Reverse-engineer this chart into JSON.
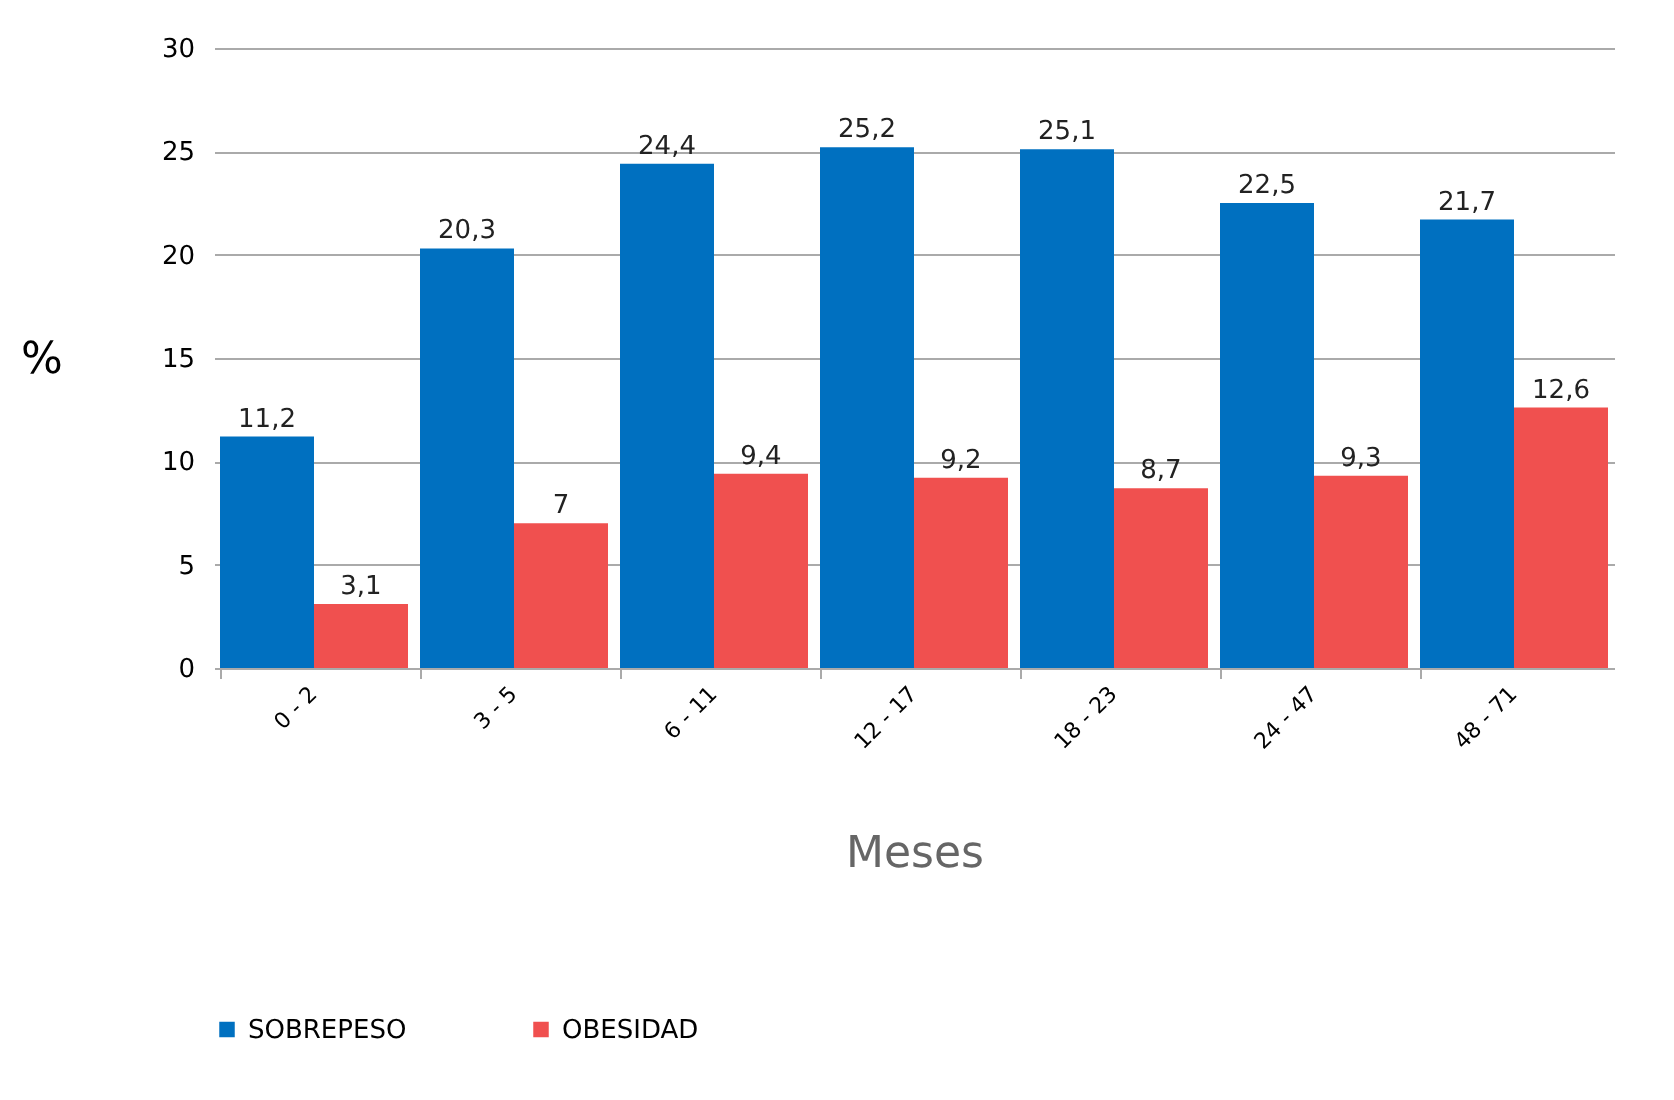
{
  "chart_data": {
    "type": "bar",
    "xlabel": "Meses",
    "ylabel": "%",
    "categories": [
      "0 - 2",
      "3 - 5",
      "6 - 11",
      "12 - 17",
      "18 - 23",
      "24 - 47",
      "48 - 71"
    ],
    "series": [
      {
        "name": "SOBREPESO",
        "color": "#0070c0",
        "values": [
          11.2,
          20.3,
          24.4,
          25.2,
          25.1,
          22.5,
          21.7
        ],
        "value_labels": [
          "11,2",
          "20,3",
          "24,4",
          "25,2",
          "25,1",
          "22,5",
          "21,7"
        ]
      },
      {
        "name": "OBESIDAD",
        "color": "#f0504f",
        "values": [
          3.1,
          7,
          9.4,
          9.2,
          8.7,
          9.3,
          12.6
        ],
        "value_labels": [
          "3,1",
          "7",
          "9,4",
          "9,2",
          "8,7",
          "9,3",
          "12,6"
        ]
      }
    ],
    "ylim": [
      0,
      30
    ],
    "yticks": [
      0,
      5,
      10,
      15,
      20,
      25,
      30
    ],
    "grid": "y",
    "legend": "bottom"
  }
}
